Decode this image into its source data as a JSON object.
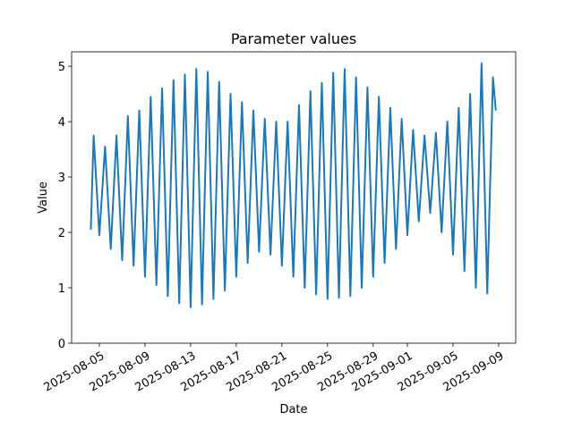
{
  "chart_data": {
    "type": "line",
    "title": "Parameter values",
    "x_label": "Date",
    "y_label": "Value",
    "x": [
      "2025-08-04T06:00",
      "2025-08-04T12:00",
      "2025-08-05T00:00",
      "2025-08-05T12:00",
      "2025-08-06T00:00",
      "2025-08-06T12:00",
      "2025-08-07T00:00",
      "2025-08-07T12:00",
      "2025-08-08T00:00",
      "2025-08-08T12:00",
      "2025-08-09T00:00",
      "2025-08-09T12:00",
      "2025-08-10T00:00",
      "2025-08-10T12:00",
      "2025-08-11T00:00",
      "2025-08-11T12:00",
      "2025-08-12T00:00",
      "2025-08-12T12:00",
      "2025-08-13T00:00",
      "2025-08-13T12:00",
      "2025-08-14T00:00",
      "2025-08-14T12:00",
      "2025-08-15T00:00",
      "2025-08-15T12:00",
      "2025-08-16T00:00",
      "2025-08-16T12:00",
      "2025-08-17T00:00",
      "2025-08-17T12:00",
      "2025-08-18T00:00",
      "2025-08-18T12:00",
      "2025-08-19T00:00",
      "2025-08-19T12:00",
      "2025-08-20T00:00",
      "2025-08-20T12:00",
      "2025-08-21T00:00",
      "2025-08-21T12:00",
      "2025-08-22T00:00",
      "2025-08-22T12:00",
      "2025-08-23T00:00",
      "2025-08-23T12:00",
      "2025-08-24T00:00",
      "2025-08-24T12:00",
      "2025-08-25T00:00",
      "2025-08-25T12:00",
      "2025-08-26T00:00",
      "2025-08-26T12:00",
      "2025-08-27T00:00",
      "2025-08-27T12:00",
      "2025-08-28T00:00",
      "2025-08-28T12:00",
      "2025-08-29T00:00",
      "2025-08-29T12:00",
      "2025-08-30T00:00",
      "2025-08-30T12:00",
      "2025-08-31T00:00",
      "2025-08-31T12:00",
      "2025-09-01T00:00",
      "2025-09-01T12:00",
      "2025-09-02T00:00",
      "2025-09-02T12:00",
      "2025-09-03T00:00",
      "2025-09-03T12:00",
      "2025-09-04T00:00",
      "2025-09-04T12:00",
      "2025-09-05T00:00",
      "2025-09-05T12:00",
      "2025-09-06T00:00",
      "2025-09-06T12:00",
      "2025-09-07T00:00",
      "2025-09-07T12:00",
      "2025-09-08T00:00",
      "2025-09-08T12:00",
      "2025-09-08T18:00"
    ],
    "series": [
      {
        "name": "Value",
        "color": "#1f77b4",
        "values": [
          2.05,
          3.75,
          1.95,
          3.55,
          1.7,
          3.75,
          1.5,
          4.1,
          1.4,
          4.2,
          1.2,
          4.45,
          1.05,
          4.6,
          0.85,
          4.75,
          0.72,
          4.85,
          0.65,
          4.95,
          0.7,
          4.9,
          0.8,
          4.72,
          0.95,
          4.5,
          1.2,
          4.35,
          1.45,
          4.2,
          1.65,
          4.05,
          1.6,
          4.0,
          1.4,
          4.0,
          1.2,
          4.3,
          1.0,
          4.55,
          0.88,
          4.7,
          0.8,
          4.88,
          0.82,
          4.95,
          0.85,
          4.8,
          1.0,
          4.62,
          1.2,
          4.45,
          1.45,
          4.25,
          1.7,
          4.05,
          1.95,
          3.85,
          2.2,
          3.75,
          2.35,
          3.8,
          2.0,
          4.0,
          1.6,
          4.25,
          1.3,
          4.5,
          1.0,
          5.05,
          0.9,
          4.8,
          4.2
        ]
      }
    ],
    "xlim": [
      "2025-08-02T13:40",
      "2025-09-10T11:50"
    ],
    "xticks": [
      "2025-08-05",
      "2025-08-09",
      "2025-08-13",
      "2025-08-17",
      "2025-08-21",
      "2025-08-25",
      "2025-08-29",
      "2025-09-01",
      "2025-09-05",
      "2025-09-09"
    ],
    "ylim": [
      0,
      5.26
    ],
    "yticks": [
      0,
      1,
      2,
      3,
      4,
      5
    ],
    "grid": false
  }
}
